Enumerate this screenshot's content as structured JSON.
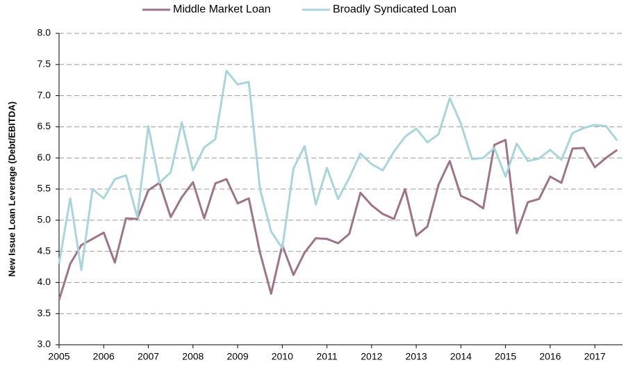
{
  "chart_data": {
    "type": "line",
    "y_label": "New Issue  Loan Leverage (Debt/EBITDA)",
    "x": [
      2005,
      2005.25,
      2005.5,
      2005.75,
      2006,
      2006.25,
      2006.5,
      2006.75,
      2007,
      2007.25,
      2007.5,
      2007.75,
      2008,
      2008.25,
      2008.5,
      2008.75,
      2009,
      2009.25,
      2009.5,
      2009.75,
      2010,
      2010.25,
      2010.5,
      2010.75,
      2011,
      2011.25,
      2011.5,
      2011.75,
      2012,
      2012.25,
      2012.5,
      2012.75,
      2013,
      2013.25,
      2013.5,
      2013.75,
      2014,
      2014.25,
      2014.5,
      2014.75,
      2015,
      2015.25,
      2015.5,
      2015.75,
      2016,
      2016.25,
      2016.5,
      2016.75,
      2017,
      2017.25,
      2017.5
    ],
    "series": [
      {
        "name": "Middle Market Loan",
        "color": "#9e7388",
        "values": [
          3.72,
          4.3,
          4.6,
          4.7,
          4.8,
          4.32,
          5.03,
          5.02,
          5.48,
          5.6,
          5.05,
          5.37,
          5.61,
          5.03,
          5.59,
          5.66,
          5.27,
          5.35,
          4.48,
          3.82,
          4.6,
          4.12,
          4.48,
          4.71,
          4.7,
          4.63,
          4.78,
          5.44,
          5.24,
          5.1,
          5.02,
          5.5,
          4.75,
          4.9,
          5.57,
          5.95,
          5.39,
          5.31,
          5.19,
          6.21,
          6.29,
          4.79,
          5.29,
          5.34,
          5.7,
          5.6,
          6.15,
          6.16,
          5.85,
          6.0,
          6.13
        ]
      },
      {
        "name": "Broadly Syndicated Loan",
        "color": "#a8d5dc",
        "values": [
          4.3,
          5.35,
          4.2,
          5.5,
          5.35,
          5.66,
          5.72,
          5.05,
          6.51,
          5.6,
          5.77,
          6.57,
          5.8,
          6.17,
          6.3,
          7.4,
          7.18,
          7.22,
          5.5,
          4.82,
          4.55,
          5.83,
          6.19,
          5.25,
          5.84,
          5.34,
          5.68,
          6.07,
          5.9,
          5.8,
          6.1,
          6.34,
          6.47,
          6.25,
          6.38,
          6.96,
          6.55,
          5.98,
          6.0,
          6.16,
          5.7,
          6.23,
          5.95,
          5.99,
          6.13,
          5.97,
          6.4,
          6.48,
          6.53,
          6.51,
          6.28
        ]
      }
    ],
    "xlim": [
      2005,
      2017.62
    ],
    "xticks": [
      2005,
      2006,
      2007,
      2008,
      2009,
      2010,
      2011,
      2012,
      2013,
      2014,
      2015,
      2016,
      2017
    ],
    "ylim": [
      3,
      8
    ],
    "yticks": [
      {
        "value": 3,
        "label": "3.0"
      },
      {
        "value": 3.5,
        "label": "3.5"
      },
      {
        "value": 4,
        "label": "4.0"
      },
      {
        "value": 4.5,
        "label": "4.5"
      },
      {
        "value": 5,
        "label": "5.0"
      },
      {
        "value": 5.5,
        "label": "5.5"
      },
      {
        "value": 6,
        "label": "6.0"
      },
      {
        "value": 6.5,
        "label": "6.5"
      },
      {
        "value": 7,
        "label": "7.0"
      },
      {
        "value": 7.5,
        "label": "7.5"
      },
      {
        "value": 8,
        "label": "8.0"
      }
    ],
    "grid": true,
    "legend": "top"
  }
}
